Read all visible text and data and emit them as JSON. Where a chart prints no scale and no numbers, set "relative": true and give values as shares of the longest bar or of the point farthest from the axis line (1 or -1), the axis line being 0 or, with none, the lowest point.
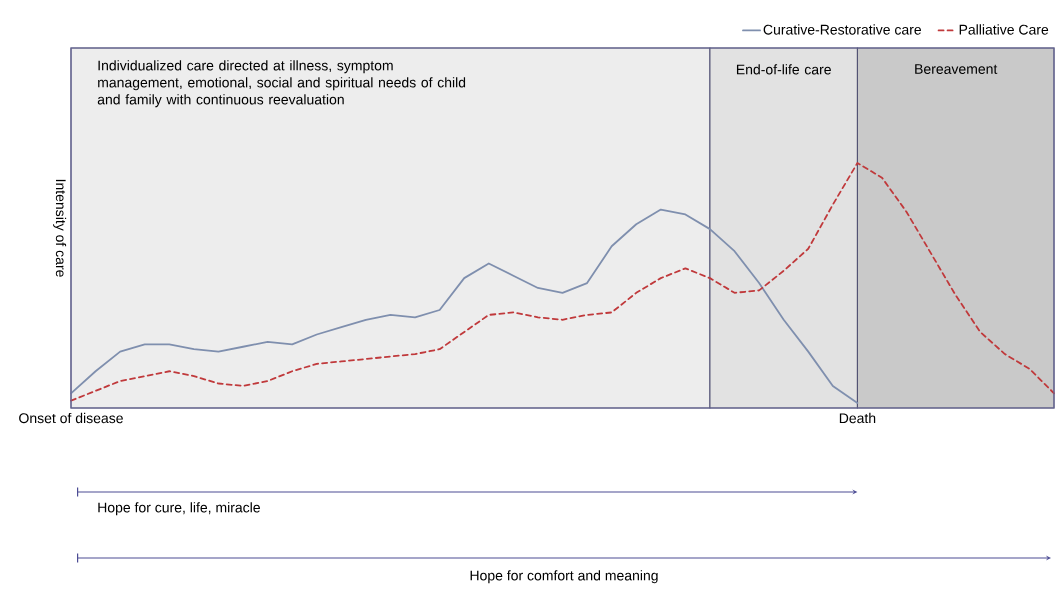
{
  "chart_data": {
    "type": "line",
    "relative": true,
    "ylabel": "Intensity of care",
    "legend": "top right",
    "categories": [
      "Onset of disease",
      null,
      null,
      null,
      null,
      null,
      null,
      null,
      null,
      null,
      null,
      null,
      null,
      null,
      null,
      null,
      null,
      null,
      null,
      null,
      null,
      null,
      null,
      null,
      null,
      null,
      null,
      null,
      null,
      null,
      null,
      null,
      "Death",
      null,
      null,
      null,
      null,
      null,
      null,
      null,
      null
    ],
    "series": [
      {
        "name": "Curative-Restorative care",
        "color": "#7f8fae",
        "line_style": "solid",
        "values": [
          0.06,
          0.15,
          0.23,
          0.26,
          0.26,
          0.24,
          0.23,
          0.25,
          0.27,
          0.26,
          0.3,
          0.33,
          0.36,
          0.38,
          0.37,
          0.4,
          0.53,
          0.59,
          0.54,
          0.49,
          0.47,
          0.51,
          0.66,
          0.75,
          0.81,
          0.79,
          0.73,
          0.64,
          0.51,
          0.36,
          0.23,
          0.09,
          0.02,
          null,
          null,
          null,
          null,
          null,
          null,
          null,
          null
        ]
      },
      {
        "name": "Palliative Care",
        "color": "#c0393b",
        "line_style": "dashed",
        "values": [
          0.03,
          0.07,
          0.11,
          0.13,
          0.15,
          0.13,
          0.1,
          0.09,
          0.11,
          0.15,
          0.18,
          0.19,
          0.2,
          0.21,
          0.22,
          0.24,
          0.31,
          0.38,
          0.39,
          0.37,
          0.36,
          0.38,
          0.39,
          0.47,
          0.53,
          0.57,
          0.53,
          0.47,
          0.48,
          0.56,
          0.65,
          0.83,
          1,
          0.94,
          0.8,
          0.63,
          0.46,
          0.31,
          0.22,
          0.16,
          0.06
        ]
      }
    ],
    "annotations": [
      "Individualized care directed at illness, symptom management, emotional, social and spiritual needs of child and family with continuous reevaluation",
      "End-of-life care",
      "Bereavement",
      "Hope for cure, life, miracle",
      "Hope for comfort and meaning"
    ]
  }
}
